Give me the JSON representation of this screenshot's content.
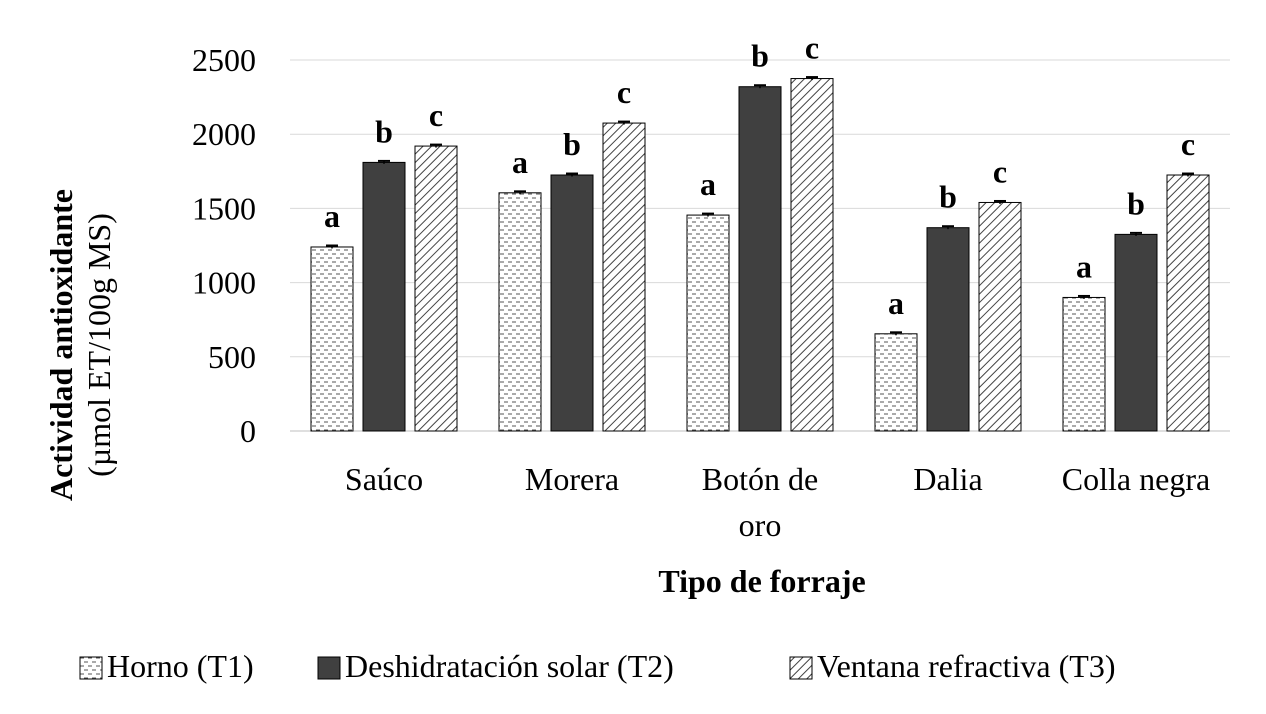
{
  "chart_data": {
    "type": "bar",
    "xlabel": "Tipo de forraje",
    "ylabel": "Actividad antioxidante",
    "ylabel_unit": "(µmol ET/100g MS)",
    "ylim": [
      0,
      2500
    ],
    "yticks": [
      0,
      500,
      1000,
      1500,
      2000,
      2500
    ],
    "grid": true,
    "legend_position": "bottom",
    "categories": [
      [
        "Saúco"
      ],
      [
        "Morera"
      ],
      [
        "Botón de",
        "oro"
      ],
      [
        "Dalia"
      ],
      [
        "Colla negra"
      ]
    ],
    "series": [
      {
        "name": "Horno (T1)",
        "pattern": "horizontal-dashes",
        "values": [
          1240,
          1605,
          1455,
          655,
          900
        ],
        "errors": [
          10,
          10,
          10,
          10,
          10
        ],
        "letters": [
          "a",
          "a",
          "a",
          "a",
          "a"
        ]
      },
      {
        "name": "Deshidratación solar (T2)",
        "pattern": "solid",
        "color": "#404040",
        "values": [
          1810,
          1725,
          2320,
          1370,
          1325
        ],
        "errors": [
          10,
          10,
          10,
          10,
          10
        ],
        "letters": [
          "b",
          "b",
          "b",
          "b",
          "b"
        ]
      },
      {
        "name": "Ventana refractiva (T3)",
        "pattern": "diagonal-hatch",
        "values": [
          1920,
          2075,
          2375,
          1540,
          1725
        ],
        "errors": [
          10,
          10,
          10,
          10,
          10
        ],
        "letters": [
          "c",
          "c",
          "c",
          "c",
          "c"
        ]
      }
    ]
  }
}
